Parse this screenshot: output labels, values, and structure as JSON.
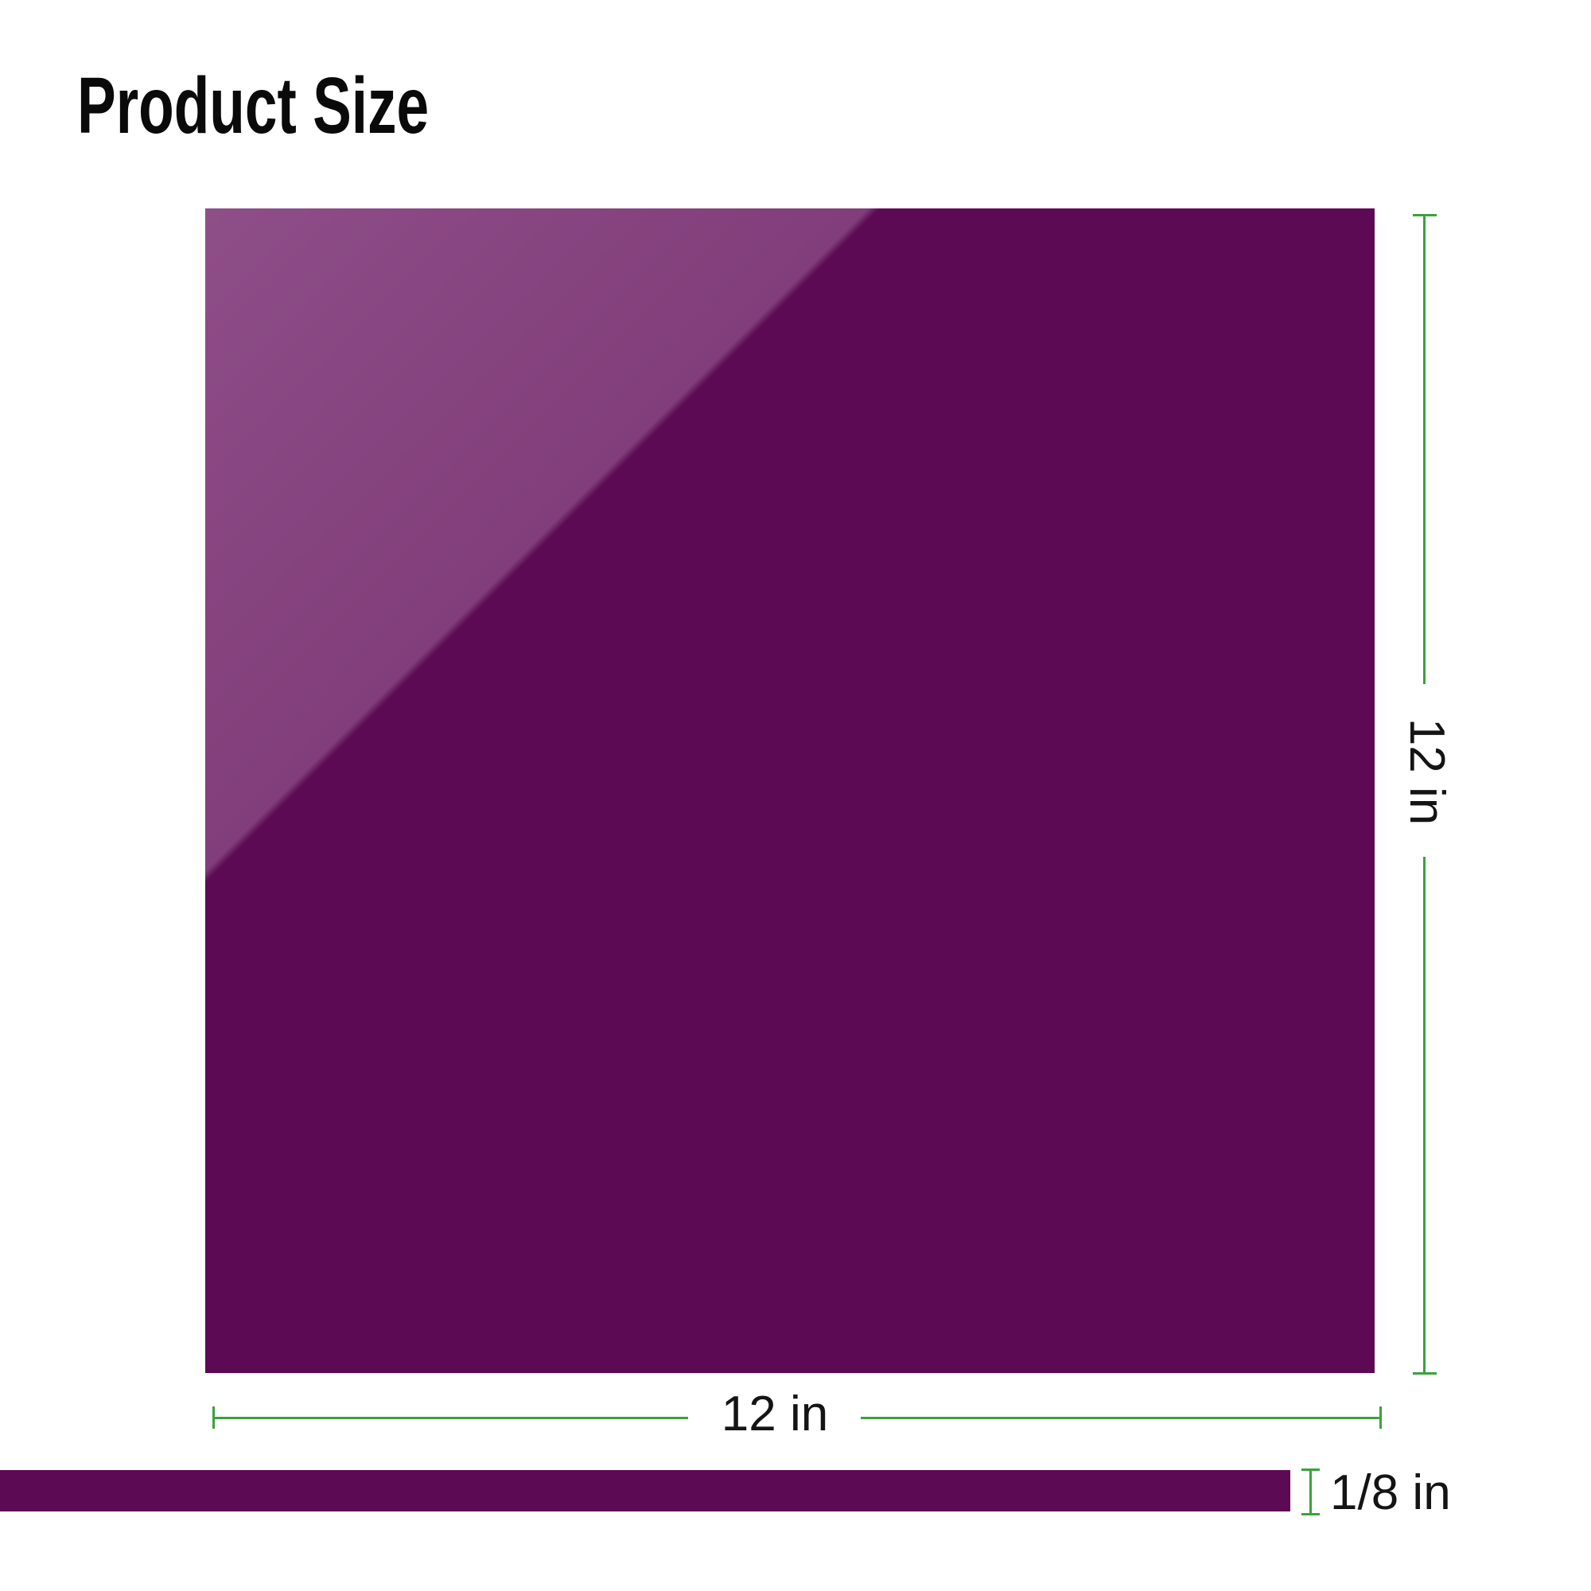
{
  "title": "Product Size",
  "sheet": {
    "width_label": "12 in",
    "height_label": "12 in",
    "thickness_label": "1/8 in"
  },
  "colors": {
    "background": "#ffffff",
    "title_text": "#0a0a0a",
    "label_text": "#141414",
    "dimension_green": "#3aa23c",
    "sheet_dark": "#5c0a53",
    "sheet_highlight": "#8e4e88",
    "sheet_highlight_deep": "#813e7a"
  }
}
